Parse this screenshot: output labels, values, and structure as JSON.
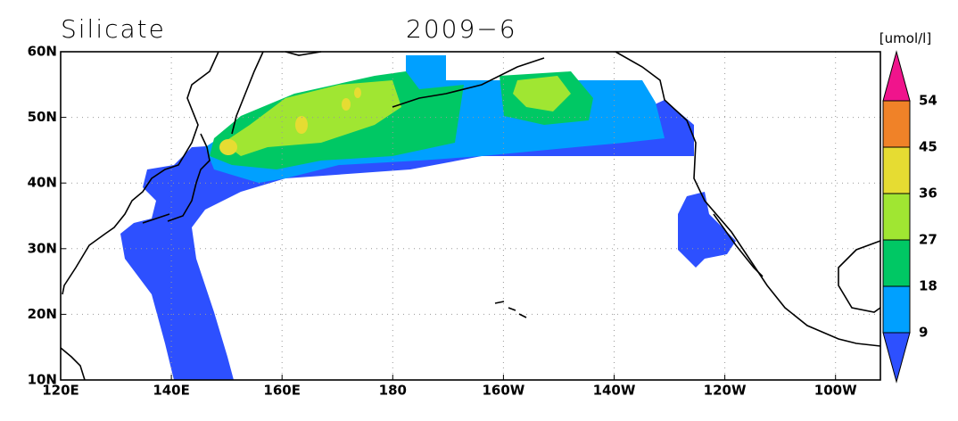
{
  "header": {
    "title": "Silicate",
    "date": "2009−6",
    "unit": "[umol/l]"
  },
  "map": {
    "lat_labels": [
      "60N",
      "50N",
      "40N",
      "30N",
      "20N",
      "10N"
    ],
    "lon_labels": [
      "120E",
      "140E",
      "160E",
      "180",
      "160W",
      "140W",
      "120W",
      "100W"
    ]
  },
  "colorbar": {
    "levels": [
      9,
      18,
      27,
      36,
      45,
      54
    ],
    "colors": [
      "#2d50ff",
      "#00a0ff",
      "#00c864",
      "#a0e632",
      "#e6dc32",
      "#f08228",
      "#f0148c"
    ]
  }
}
